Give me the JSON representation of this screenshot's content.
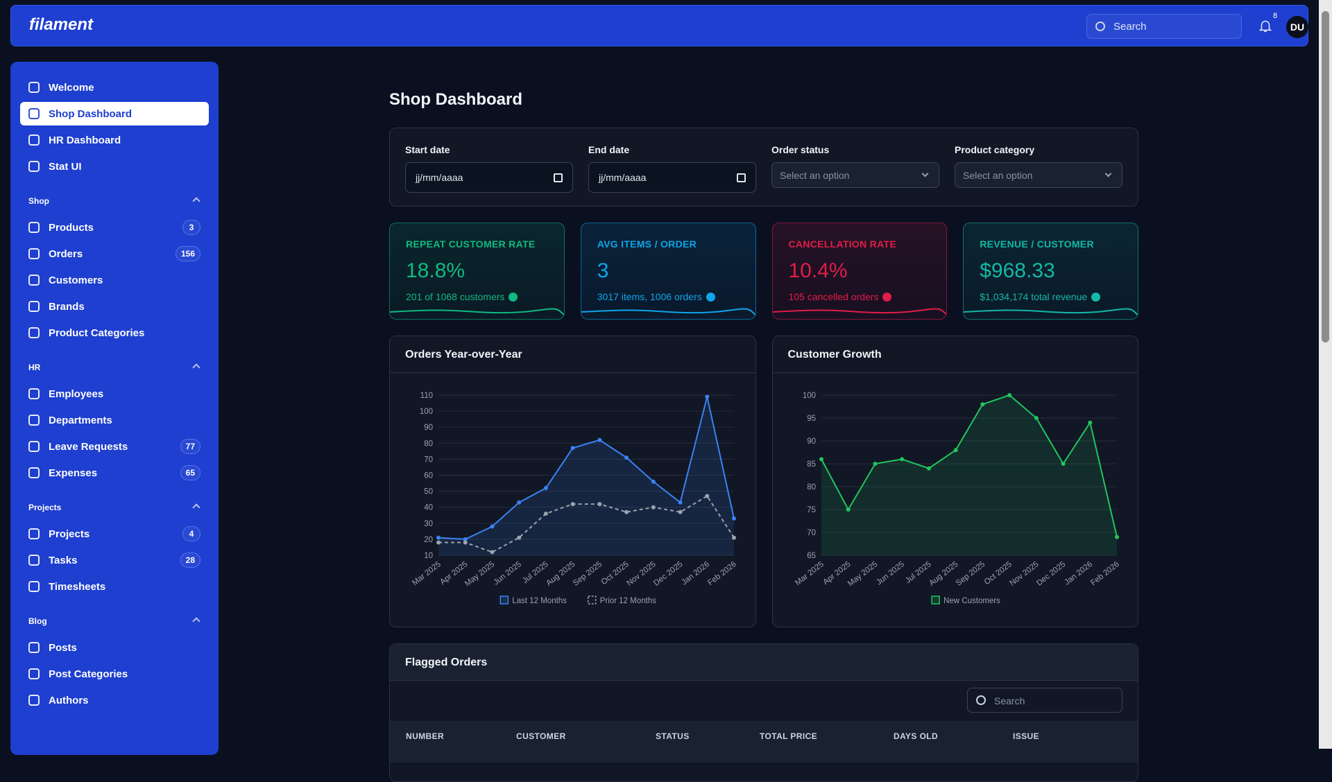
{
  "header": {
    "logo": "filament",
    "search": "Search",
    "notifications": 8,
    "avatar": "DU"
  },
  "sidebar": {
    "items": [
      {
        "label": "Welcome"
      },
      {
        "label": "Shop Dashboard",
        "active": true
      },
      {
        "label": "HR Dashboard"
      },
      {
        "label": "Stat UI"
      }
    ],
    "groups": [
      {
        "label": "Shop",
        "items": [
          {
            "label": "Products",
            "badge": 3
          },
          {
            "label": "Orders",
            "badge": 156
          },
          {
            "label": "Customers"
          },
          {
            "label": "Brands"
          },
          {
            "label": "Product Categories"
          }
        ]
      },
      {
        "label": "HR",
        "items": [
          {
            "label": "Employees"
          },
          {
            "label": "Departments"
          },
          {
            "label": "Leave Requests",
            "badge": 77
          },
          {
            "label": "Expenses",
            "badge": 65
          }
        ]
      },
      {
        "label": "Projects",
        "items": [
          {
            "label": "Projects",
            "badge": 4
          },
          {
            "label": "Tasks",
            "badge": 28
          },
          {
            "label": "Timesheets"
          }
        ]
      },
      {
        "label": "Blog",
        "items": [
          {
            "label": "Posts"
          },
          {
            "label": "Post Categories"
          },
          {
            "label": "Authors"
          }
        ]
      }
    ]
  },
  "page": {
    "title": "Shop Dashboard"
  },
  "filters": [
    {
      "label": "Start date",
      "placeholder": "jj/mm/aaaa",
      "kind": "date"
    },
    {
      "label": "End date",
      "placeholder": "jj/mm/aaaa",
      "kind": "date"
    },
    {
      "label": "Order status",
      "placeholder": "Select an option",
      "kind": "select"
    },
    {
      "label": "Product category",
      "placeholder": "Select an option",
      "kind": "select"
    }
  ],
  "stats": [
    {
      "label": "REPEAT CUSTOMER RATE",
      "value": "18.8%",
      "description": "201 of 1068 customers",
      "color": "#10b981"
    },
    {
      "label": "AVG ITEMS / ORDER",
      "value": "3",
      "description": "3017 items, 1006 orders",
      "color": "#0ea5e9"
    },
    {
      "label": "CANCELLATION RATE",
      "value": "10.4%",
      "description": "105 cancelled orders",
      "color": "#e11d48"
    },
    {
      "label": "REVENUE / CUSTOMER",
      "value": "$968.33",
      "description": "$1,034,174 total revenue",
      "color": "#14b8a6"
    }
  ],
  "charts": [
    {
      "type": "line",
      "title": "Orders Year-over-Year",
      "categories": [
        "Mar 2025",
        "Apr 2025",
        "May 2025",
        "Jun 2025",
        "Jul 2025",
        "Aug 2025",
        "Sep 2025",
        "Oct 2025",
        "Nov 2025",
        "Dec 2025",
        "Jan 2026",
        "Feb 2026"
      ],
      "series": [
        {
          "name": "Last 12 Months",
          "color": "#3b82f6",
          "fill": true,
          "dashed": false,
          "values": [
            21,
            20,
            28,
            43,
            52,
            77,
            82,
            71,
            56,
            43,
            109,
            33
          ]
        },
        {
          "name": "Prior 12 Months",
          "color": "#9ca3af",
          "fill": false,
          "dashed": true,
          "values": [
            18,
            18,
            12,
            21,
            36,
            42,
            42,
            37,
            40,
            37,
            47,
            21
          ]
        }
      ],
      "ylim": [
        10,
        110
      ],
      "yticks": [
        10,
        20,
        30,
        40,
        50,
        60,
        70,
        80,
        90,
        100,
        110
      ],
      "grid": true
    },
    {
      "type": "line",
      "title": "Customer Growth",
      "categories": [
        "Mar 2025",
        "Apr 2025",
        "May 2025",
        "Jun 2025",
        "Jul 2025",
        "Aug 2025",
        "Sep 2025",
        "Oct 2025",
        "Nov 2025",
        "Dec 2025",
        "Jan 2026",
        "Feb 2026"
      ],
      "series": [
        {
          "name": "New Customers",
          "color": "#22c55e",
          "fill": true,
          "dashed": false,
          "values": [
            86,
            75,
            85,
            86,
            84,
            88,
            98,
            100,
            95,
            85,
            94,
            69
          ]
        }
      ],
      "ylim": [
        65,
        100
      ],
      "yticks": [
        65,
        70,
        75,
        80,
        85,
        90,
        95,
        100
      ],
      "grid": true
    }
  ],
  "table": {
    "title": "Flagged Orders",
    "search": "Search",
    "columns": [
      "NUMBER",
      "CUSTOMER",
      "STATUS",
      "TOTAL PRICE",
      "DAYS OLD",
      "ISSUE"
    ]
  }
}
